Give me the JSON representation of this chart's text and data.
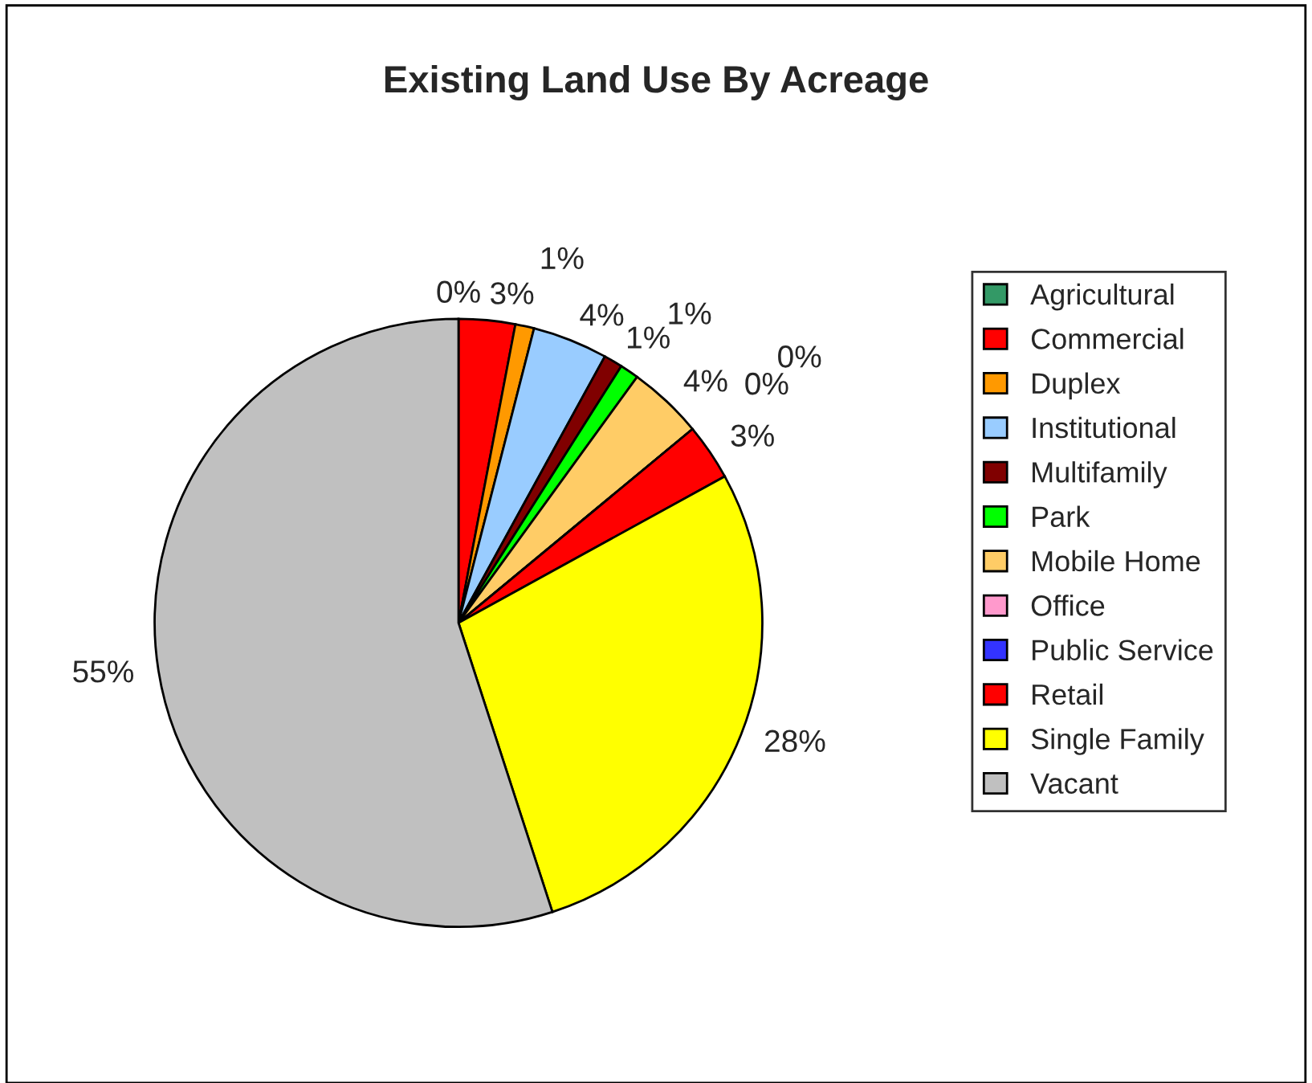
{
  "chart_data": {
    "type": "pie",
    "title": "Existing Land Use By Acreage",
    "categories": [
      "Agricultural",
      "Commercial",
      "Duplex",
      "Institutional",
      "Multifamily",
      "Park",
      "Mobile Home",
      "Office",
      "Public Service",
      "Retail",
      "Single Family",
      "Vacant"
    ],
    "values": [
      0,
      3,
      1,
      4,
      1,
      1,
      4,
      0,
      0,
      3,
      28,
      55
    ],
    "value_labels": [
      "0%",
      "3%",
      "1%",
      "4%",
      "1%",
      "1%",
      "4%",
      "0%",
      "0%",
      "3%",
      "28%",
      "55%"
    ],
    "colors": [
      "#339966",
      "#ff0000",
      "#ff9900",
      "#99ccff",
      "#800000",
      "#00ff00",
      "#ffcc66",
      "#ff99cc",
      "#3333ff",
      "#ff0000",
      "#ffff00",
      "#c0c0c0"
    ],
    "legend": "right"
  }
}
